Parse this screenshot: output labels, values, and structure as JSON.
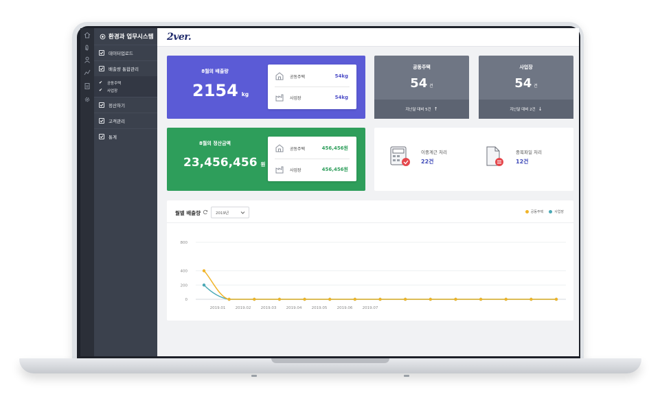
{
  "app": {
    "title": "환경과 업무시스템",
    "logo": "2ver."
  },
  "sidebar": {
    "items": [
      {
        "label": "데이터업로드"
      },
      {
        "label": "배출량 통합관리"
      },
      {
        "label": "정산하기"
      },
      {
        "label": "고객관리"
      },
      {
        "label": "통계"
      }
    ],
    "subitems": [
      {
        "label": "공동주택"
      },
      {
        "label": "사업장"
      }
    ]
  },
  "emission_card": {
    "title": "8월의 배출량",
    "value": "2154",
    "unit": "kg",
    "rows": [
      {
        "label": "공동주택",
        "value": "54kg"
      },
      {
        "label": "사업장",
        "value": "54kg"
      }
    ]
  },
  "settlement_card": {
    "title": "8월의 정산금액",
    "value": "23,456,456",
    "unit": "원",
    "rows": [
      {
        "label": "공동주택",
        "value": "456,456원"
      },
      {
        "label": "사업장",
        "value": "456,456원"
      }
    ]
  },
  "stat_cards": [
    {
      "title": "공동주택",
      "value": "54",
      "unit": "건",
      "footer": "지난달 대비 5건",
      "trend": "up"
    },
    {
      "title": "사업장",
      "value": "54",
      "unit": "건",
      "footer": "지난달 대비 2건",
      "trend": "down"
    }
  ],
  "processing": [
    {
      "label": "이중계근 처리",
      "value": "22건"
    },
    {
      "label": "중복파일 처리",
      "value": "12건"
    }
  ],
  "chart_panel": {
    "title": "월별 배출량",
    "selected_year": "2019년"
  },
  "colors": {
    "purple": "#5b5bd6",
    "green": "#2e9e5b",
    "series_apartment": "#f0b429",
    "series_business": "#4aa9b5"
  },
  "chart_data": {
    "type": "line",
    "ylim": [
      0,
      800
    ],
    "yticks": [
      0,
      200,
      400,
      800
    ],
    "x_ticks": [
      "2019.01",
      "2019.02",
      "2019.03",
      "2019.04",
      "2019.05",
      "2019.06",
      "2019.07"
    ],
    "series": [
      {
        "name": "공동주택",
        "color": "#f0b429",
        "values": [
          400,
          0,
          0,
          0,
          0,
          0,
          0,
          0,
          0,
          0,
          0,
          0,
          0,
          0,
          0
        ]
      },
      {
        "name": "사업장",
        "color": "#4aa9b5",
        "values": [
          200,
          0,
          0,
          0,
          0,
          0,
          0,
          0,
          0,
          0,
          0,
          0,
          0,
          0,
          0
        ]
      }
    ],
    "legend_position": "top-right",
    "grid": true
  }
}
